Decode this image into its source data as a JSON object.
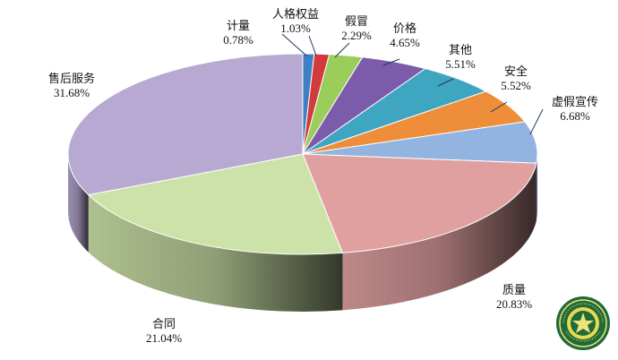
{
  "chart_data": {
    "type": "pie",
    "style": "3d",
    "title": "",
    "unit": "%",
    "slices": [
      {
        "name": "计量",
        "value": 0.78,
        "label": "0.78%",
        "color": "#3f7fc4"
      },
      {
        "name": "人格权益",
        "value": 1.03,
        "label": "1.03%",
        "color": "#d13b3b"
      },
      {
        "name": "假冒",
        "value": 2.29,
        "label": "2.29%",
        "color": "#9acd5a"
      },
      {
        "name": "价格",
        "value": 4.65,
        "label": "4.65%",
        "color": "#7d5bab"
      },
      {
        "name": "其他",
        "value": 5.51,
        "label": "5.51%",
        "color": "#3fa6c2"
      },
      {
        "name": "安全",
        "value": 5.52,
        "label": "5.52%",
        "color": "#ee8d3a"
      },
      {
        "name": "虚假宣传",
        "value": 6.68,
        "label": "6.68%",
        "color": "#93b3e0"
      },
      {
        "name": "质量",
        "value": 20.83,
        "label": "20.83%",
        "color": "#e0a0a0"
      },
      {
        "name": "合同",
        "value": 21.04,
        "label": "21.04%",
        "color": "#cde2a8"
      },
      {
        "name": "售后服务",
        "value": 31.68,
        "label": "31.68%",
        "color": "#b8a9d2"
      }
    ]
  }
}
